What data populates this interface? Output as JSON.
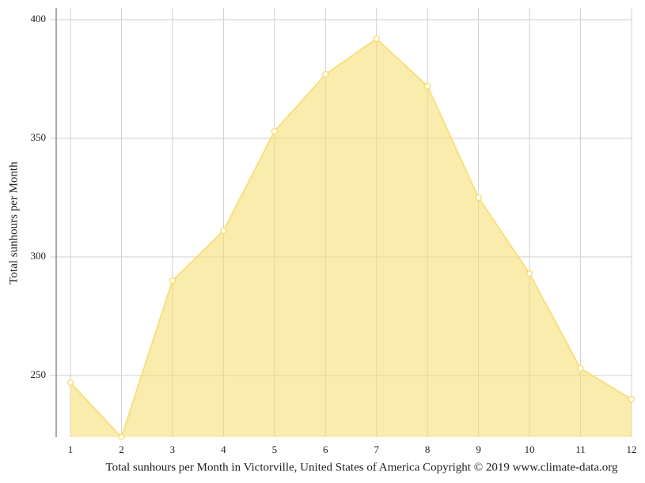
{
  "chart_data": {
    "type": "area",
    "title": "Total sunhours per Month in Victorville, United States of America Copyright © 2019 www.climate-data.org",
    "y_label": "Total sunhours per Month",
    "x": [
      1,
      2,
      3,
      4,
      5,
      6,
      7,
      8,
      9,
      10,
      11,
      12
    ],
    "values": [
      247,
      224,
      290,
      311,
      353,
      377,
      392,
      372,
      325,
      293,
      253,
      240
    ],
    "color": "#f5dc6a",
    "xlim": [
      1,
      12
    ],
    "xticks": [
      1,
      2,
      3,
      4,
      5,
      6,
      7,
      8,
      9,
      10,
      11,
      12
    ],
    "ylim": [
      224,
      405
    ],
    "yticks": [
      250,
      300,
      350,
      400
    ],
    "grid": true
  }
}
